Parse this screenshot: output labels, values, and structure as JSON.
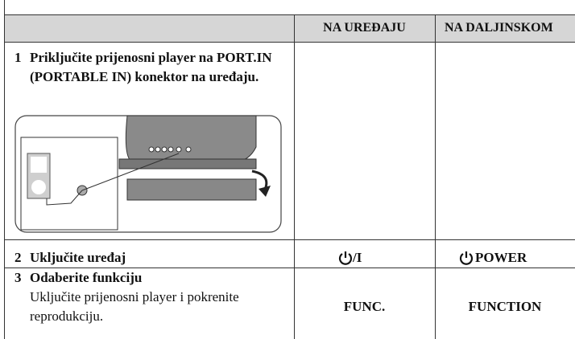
{
  "table": {
    "header": [
      "NA UREĐAJU",
      "NA DALJINSKOM"
    ],
    "rows": [
      {
        "number": "1",
        "title": "Priključite prijenosni player na PORT.IN (PORTABLE IN) konektor na uređaju."
      },
      {
        "number": "2",
        "title": "Uključite uređaj",
        "device": "/I",
        "remote": "POWER"
      },
      {
        "number": "3",
        "title": "Odaberite funkciju",
        "text": "Uključite prijenosni player i pokrenite reprodukciju.",
        "device": "FUNC.",
        "remote": "FUNCTION"
      }
    ]
  }
}
